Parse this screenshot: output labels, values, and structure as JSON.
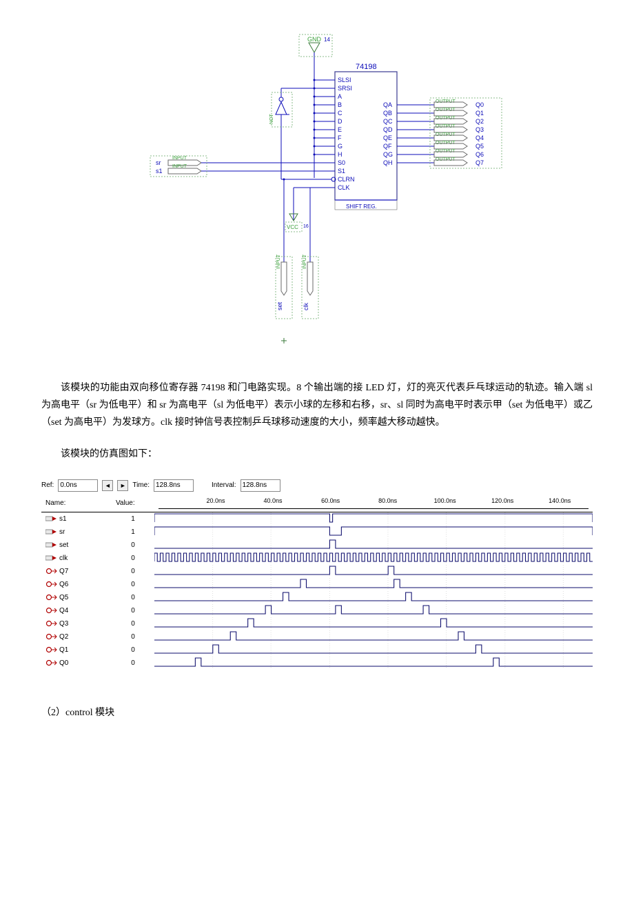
{
  "schematic": {
    "chip_label": "74198",
    "gnd_label": "GND",
    "gnd_pin": "14",
    "vcc_label": "VCC",
    "vcc_pin": "16",
    "footer": "SHIFT REG.",
    "left_pins": [
      "SLSI",
      "SRSI",
      "A",
      "B",
      "C",
      "D",
      "E",
      "F",
      "G",
      "H",
      "S0",
      "S1",
      "CLRN",
      "CLK"
    ],
    "right_pins": [
      "QA",
      "QB",
      "QC",
      "QD",
      "QE",
      "QF",
      "QG",
      "QH"
    ],
    "output_tag": "OUTPUT",
    "input_tag": "INPUT",
    "outputs": [
      "Q0",
      "Q1",
      "Q2",
      "Q3",
      "Q4",
      "Q5",
      "Q6",
      "Q7"
    ],
    "inputs_left": [
      "sr",
      "s1"
    ],
    "inputs_bottom": [
      "set",
      "clk"
    ],
    "not_label": "NOT",
    "colors": {
      "wire": "#0b0bb8",
      "pin_text": "#0b0bb8",
      "block_border": "#0b0bb8",
      "io_box": "#6a6a6a",
      "io_text": "#3a7a3a",
      "output_text_small": "#3aa03a",
      "dashed": "#88bb88"
    }
  },
  "paragraph1": "该模块的功能由双向移位寄存器 74198 和门电路实现。8 个输出端的接 LED 灯，灯的亮灭代表乒乓球运动的轨迹。输入端 sl 为高电平（sr 为低电平）和 sr 为高电平（sl 为低电平）表示小球的左移和右移，sr、sl 同时为高电平时表示甲（set 为低电平）或乙（set 为高电平）为发球方。clk 接时钟信号表控制乒乓球移动速度的大小，频率越大移动越快。",
  "paragraph2": "该模块的仿真图如下：",
  "section2": "（2）control 模块",
  "waveform": {
    "ref_label": "Ref:",
    "ref_value": "0.0ns",
    "time_label": "Time:",
    "time_value": "128.8ns",
    "interval_label": "Interval:",
    "interval_value": "128.8ns",
    "name_header": "Name:",
    "value_header": "Value:",
    "time_ticks": [
      "20.0ns",
      "40.0ns",
      "60.0ns",
      "80.0ns",
      "100.0ns",
      "120.0ns",
      "140.0ns"
    ],
    "time_positions_pct": [
      13.3,
      26.6,
      40.0,
      53.3,
      66.6,
      80.0,
      93.3
    ],
    "time_end_ns": 150,
    "signals": [
      {
        "name": "s1",
        "value": "1",
        "type": "in",
        "high": [
          [
            0,
            60
          ],
          [
            61,
            150
          ]
        ]
      },
      {
        "name": "sr",
        "value": "1",
        "type": "in",
        "high": [
          [
            0,
            60
          ],
          [
            64,
            150
          ]
        ]
      },
      {
        "name": "set",
        "value": "0",
        "type": "in",
        "high": [
          [
            60,
            62
          ]
        ]
      },
      {
        "name": "clk",
        "value": "0",
        "type": "in",
        "clock": true,
        "period": 2
      },
      {
        "name": "Q7",
        "value": "0",
        "type": "out",
        "high": [
          [
            60,
            62
          ],
          [
            80,
            82
          ]
        ]
      },
      {
        "name": "Q6",
        "value": "0",
        "type": "out",
        "high": [
          [
            50,
            52
          ],
          [
            82,
            84
          ]
        ]
      },
      {
        "name": "Q5",
        "value": "0",
        "type": "out",
        "high": [
          [
            44,
            46
          ],
          [
            86,
            88
          ]
        ]
      },
      {
        "name": "Q4",
        "value": "0",
        "type": "out",
        "high": [
          [
            38,
            40
          ],
          [
            62,
            64
          ],
          [
            92,
            94
          ]
        ]
      },
      {
        "name": "Q3",
        "value": "0",
        "type": "out",
        "high": [
          [
            32,
            34
          ],
          [
            98,
            100
          ]
        ]
      },
      {
        "name": "Q2",
        "value": "0",
        "type": "out",
        "high": [
          [
            26,
            28
          ],
          [
            104,
            106
          ]
        ]
      },
      {
        "name": "Q1",
        "value": "0",
        "type": "out",
        "high": [
          [
            20,
            22
          ],
          [
            110,
            112
          ]
        ]
      },
      {
        "name": "Q0",
        "value": "0",
        "type": "out",
        "high": [
          [
            14,
            16
          ],
          [
            116,
            118
          ]
        ]
      }
    ],
    "colors": {
      "bg": "#ffffff",
      "grid": "#e0e0e0",
      "wave": "#0b0b6b",
      "axis": "#000000",
      "icon_in": "#b00000",
      "icon_out": "#b00000"
    }
  }
}
